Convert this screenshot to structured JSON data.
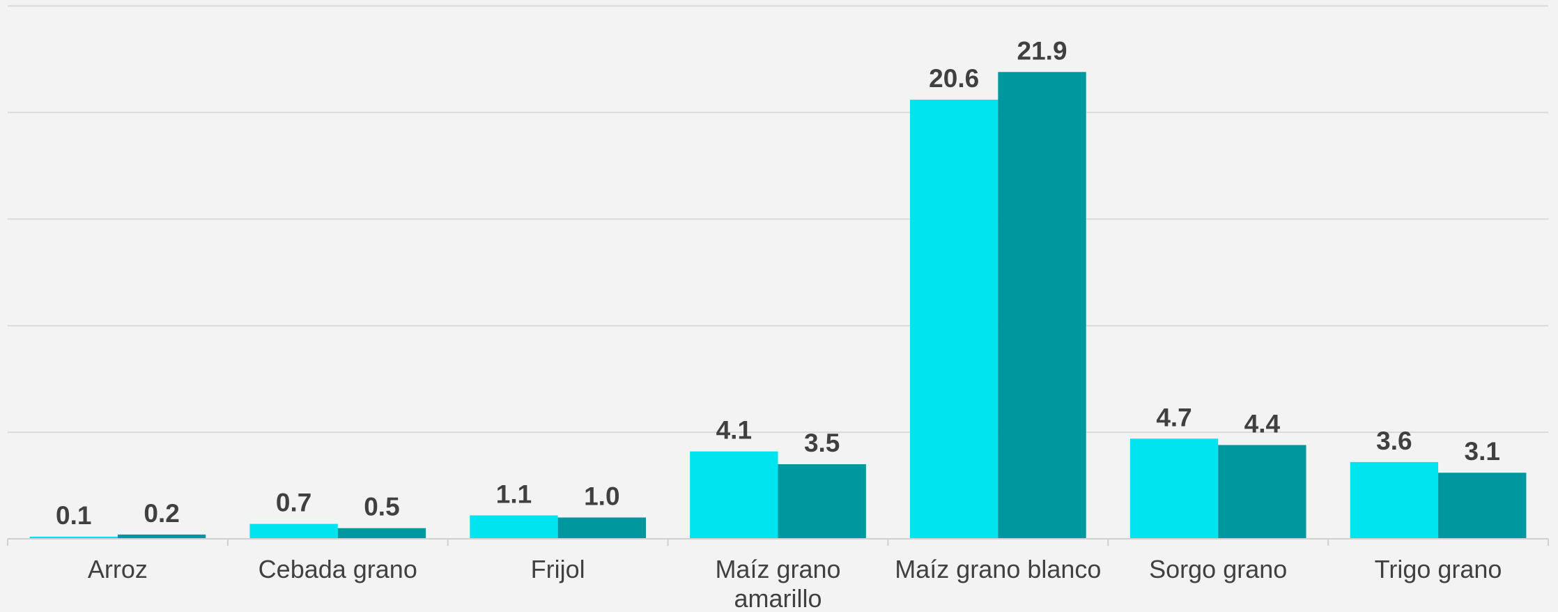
{
  "chart_data": {
    "type": "bar",
    "categories": [
      "Arroz",
      "Cebada grano",
      "Frijol",
      "Maíz grano amarillo",
      "Maíz grano blanco",
      "Sorgo grano",
      "Trigo grano"
    ],
    "series": [
      {
        "color": "#00e4f0",
        "values": [
          0.1,
          0.7,
          1.1,
          4.1,
          20.6,
          4.7,
          3.6
        ],
        "value_labels": [
          "0.1",
          "0.7",
          "1.1",
          "4.1",
          "20.6",
          "4.7",
          "3.6"
        ]
      },
      {
        "color": "#00979f",
        "values": [
          0.2,
          0.5,
          1.0,
          3.5,
          21.9,
          4.4,
          3.1
        ],
        "value_labels": [
          "0.2",
          "0.5",
          "1.0",
          "3.5",
          "21.9",
          "4.4",
          "3.1"
        ]
      }
    ],
    "ylim": [
      0,
      25
    ],
    "yticks": [
      0,
      5,
      10,
      15,
      20,
      25
    ],
    "grid": true
  }
}
